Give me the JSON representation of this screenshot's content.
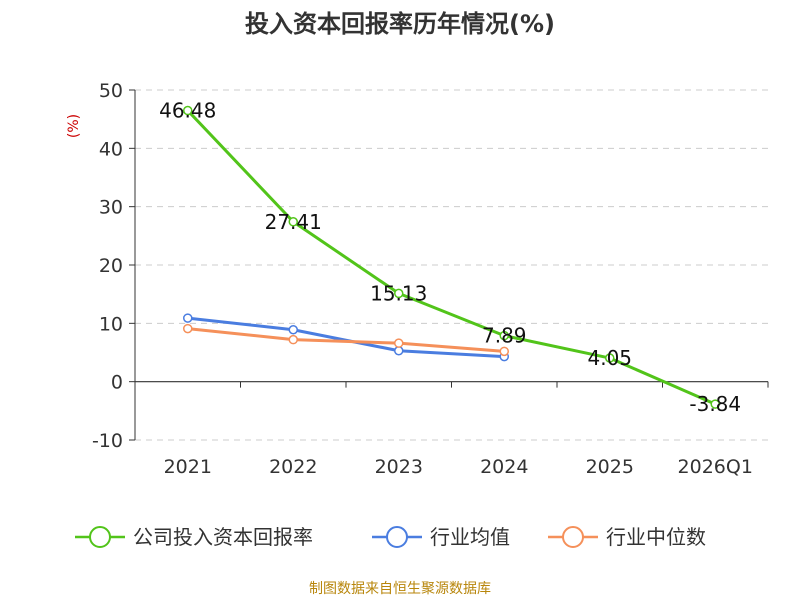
{
  "chart_data": {
    "type": "line",
    "title": "投入资本回报率历年情况(%)",
    "ylabel": "(%)",
    "categories": [
      "2021",
      "2022",
      "2023",
      "2024",
      "2025",
      "2026Q1"
    ],
    "ylim": [
      -10,
      50
    ],
    "yticks": [
      50,
      40,
      30,
      20,
      10,
      0,
      -10
    ],
    "grid": true,
    "legend_position": "bottom",
    "series": [
      {
        "name": "公司投入资本回报率",
        "color": "#52c41a",
        "values": [
          46.48,
          27.41,
          15.13,
          7.89,
          4.05,
          -3.84
        ],
        "labels": [
          "46.48",
          "27.41",
          "15.13",
          "7.89",
          "4.05",
          "-3.84"
        ]
      },
      {
        "name": "行业均值",
        "color": "#4a7de0",
        "values": [
          10.9,
          8.9,
          5.3,
          4.3,
          null,
          null
        ]
      },
      {
        "name": "行业中位数",
        "color": "#f5905a",
        "values": [
          9.1,
          7.2,
          6.6,
          5.2,
          null,
          null
        ]
      }
    ],
    "source": "制图数据来自恒生聚源数据库"
  }
}
